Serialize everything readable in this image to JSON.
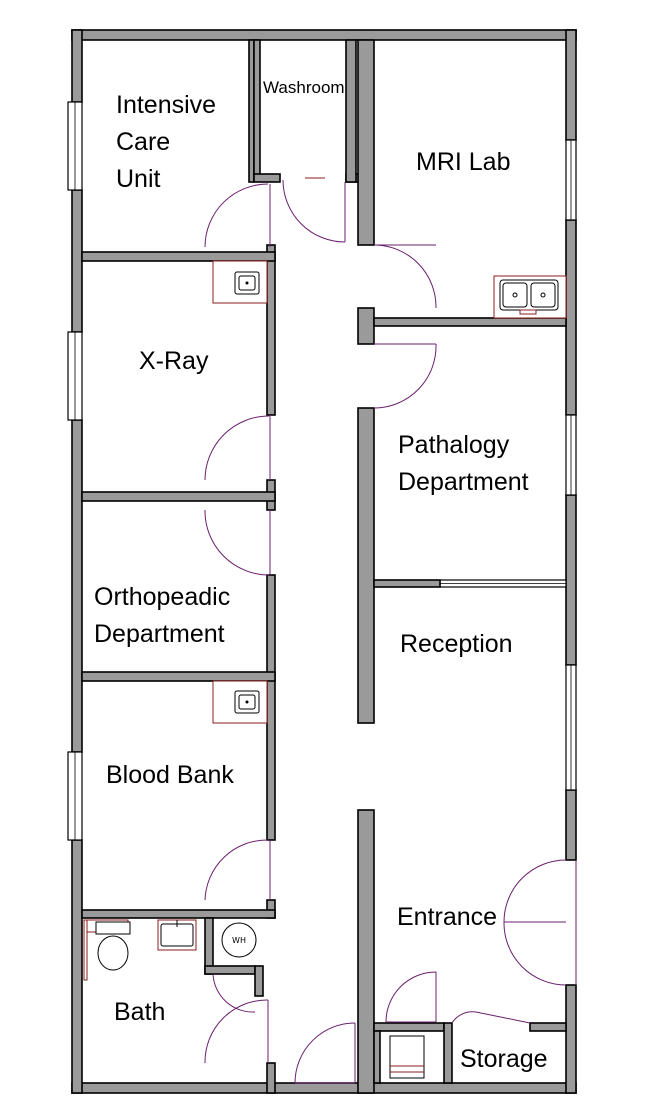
{
  "plan": {
    "rooms": {
      "icu": {
        "line1": "Intensive",
        "line2": "Care",
        "line3": "Unit"
      },
      "washroom": {
        "label": "Washroom"
      },
      "mri": {
        "label": "MRI Lab"
      },
      "xray": {
        "label": "X-Ray"
      },
      "pathology": {
        "line1": "Pathalogy",
        "line2": "Department"
      },
      "orthopedic": {
        "line1": "Orthopeadic",
        "line2": "Department"
      },
      "reception": {
        "label": "Reception"
      },
      "blood_bank": {
        "label": "Blood Bank"
      },
      "entrance": {
        "label": "Entrance"
      },
      "bath": {
        "label": "Bath"
      },
      "storage": {
        "label": "Storage"
      }
    },
    "fixtures": {
      "water_heater": "WH"
    }
  }
}
